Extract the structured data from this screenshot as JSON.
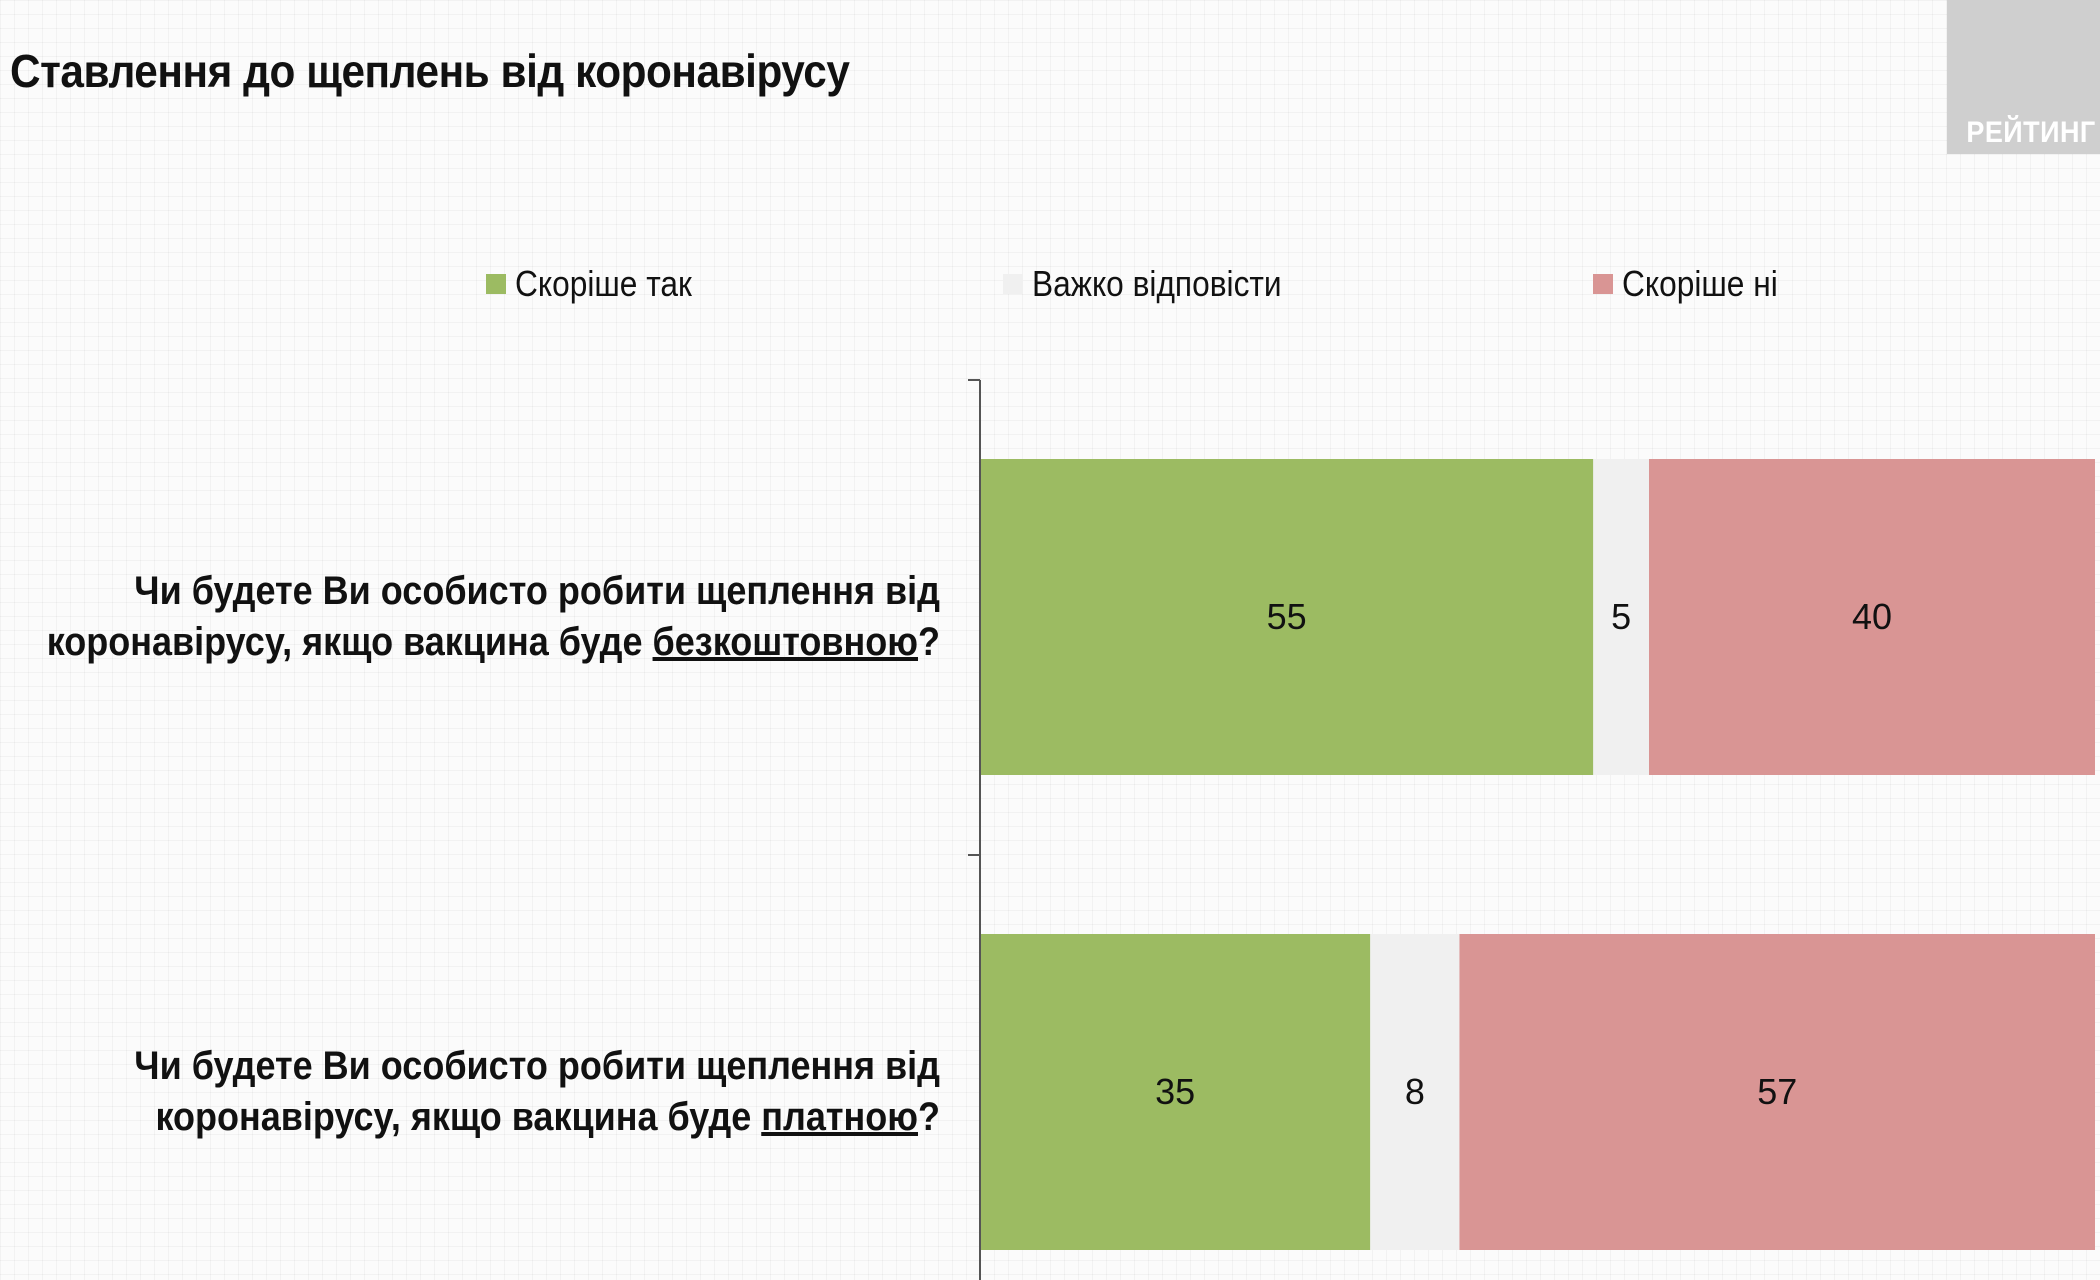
{
  "title": "Ставлення до щеплень від коронавірусу",
  "logo_text": "РЕЙТИНГ",
  "chart_data": {
    "type": "bar",
    "orientation": "horizontal",
    "stacked": true,
    "percent_stacked": true,
    "legend_position": "top",
    "categories": [
      {
        "line1": "Чи будете Ви особисто робити щеплення від",
        "line2_prefix": "коронавірусу, якщо вакцина буде ",
        "line2_highlight": "безкоштовною",
        "line2_suffix": "?"
      },
      {
        "line1": "Чи будете Ви особисто робити щеплення від",
        "line2_prefix": "коронавірусу, якщо вакцина буде ",
        "line2_highlight": "платною",
        "line2_suffix": "?"
      }
    ],
    "series": [
      {
        "name": "Скоріше так",
        "color": "#9cbb62",
        "values": [
          55,
          35
        ]
      },
      {
        "name": "Важко відповісти",
        "color": "#f0f0f0",
        "values": [
          5,
          8
        ]
      },
      {
        "name": "Скоріше ні",
        "color": "#d99594",
        "values": [
          40,
          57
        ]
      }
    ],
    "xlim": [
      0,
      100
    ]
  }
}
